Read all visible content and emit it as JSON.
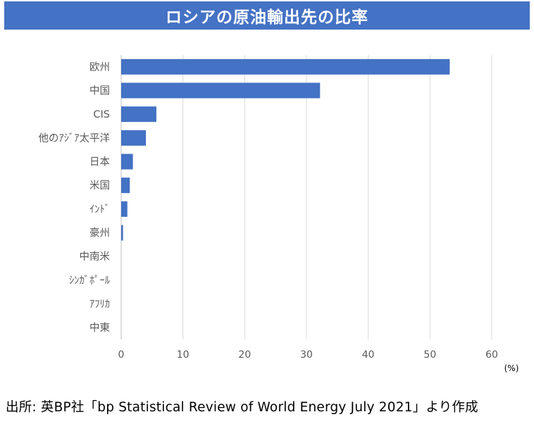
{
  "title": "ロシアの原油輸出先の比率",
  "source": "出所: 英BP社「bp Statistical Review of World Energy July 2021」より作成",
  "colors": {
    "bar": "#4472c4",
    "title_bg": "#4472c4",
    "grid": "#d9d9d9",
    "axis": "#bfbfbf",
    "label": "#595959"
  },
  "chart_data": {
    "type": "bar",
    "orientation": "horizontal",
    "categories": [
      "欧州",
      "中国",
      "CIS",
      "他のｱｼﾞｱ太平洋",
      "日本",
      "米国",
      "ｲﾝﾄﾞ",
      "豪州",
      "中南米",
      "ｼﾝｶﾞﾎﾟｰﾙ",
      "ｱﾌﾘｶ",
      "中東"
    ],
    "values": [
      53.2,
      32.2,
      5.7,
      4.0,
      1.9,
      1.4,
      1.0,
      0.3,
      0.0,
      0.0,
      0.0,
      0.0
    ],
    "xlim": [
      0,
      60
    ],
    "xticks": [
      0,
      10,
      20,
      30,
      40,
      50,
      60
    ],
    "xunit": "(%)",
    "grid": true,
    "legend": "none"
  }
}
